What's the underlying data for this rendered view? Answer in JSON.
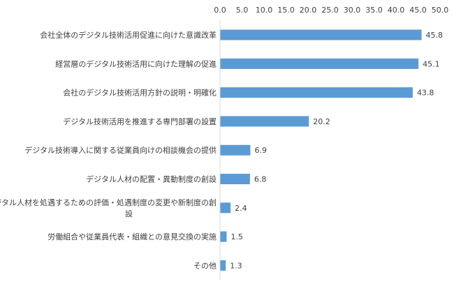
{
  "chart_data": {
    "type": "bar",
    "orientation": "horizontal",
    "xlim": [
      0,
      50
    ],
    "x_ticks": [
      0,
      5,
      10,
      15,
      20,
      25,
      30,
      35,
      40,
      45,
      50
    ],
    "x_tick_labels": [
      "0.0",
      "5.0",
      "10.0",
      "15.0",
      "20.0",
      "25.0",
      "30.0",
      "35.0",
      "40.0",
      "45.0",
      "50.0"
    ],
    "x_axis_position": "top",
    "grid": false,
    "legend": false,
    "bar_color": "#5b9bd5",
    "categories": [
      "会社全体のデジタル技術活用促進に向けた意識改革",
      "経営層のデジタル技術活用に向けた理解の促進",
      "会社のデジタル技術活用方針の説明・明確化",
      "デジタル技術活用を推進する専門部署の設置",
      "デジタル技術導入に関する従業員向けの相談機会の提供",
      "デジタル人材の配置・異動制度の創設",
      "デジタル人材を処遇するための評価・処遇制度の変更や新制度の創設",
      "労働組合や従業員代表・組織との意見交換の実施",
      "その他"
    ],
    "values": [
      45.8,
      45.1,
      43.8,
      20.2,
      6.9,
      6.8,
      2.4,
      1.5,
      1.3
    ],
    "value_labels": [
      "45.8",
      "45.1",
      "43.8",
      "20.2",
      "6.9",
      "6.8",
      "2.4",
      "1.5",
      "1.3"
    ]
  }
}
